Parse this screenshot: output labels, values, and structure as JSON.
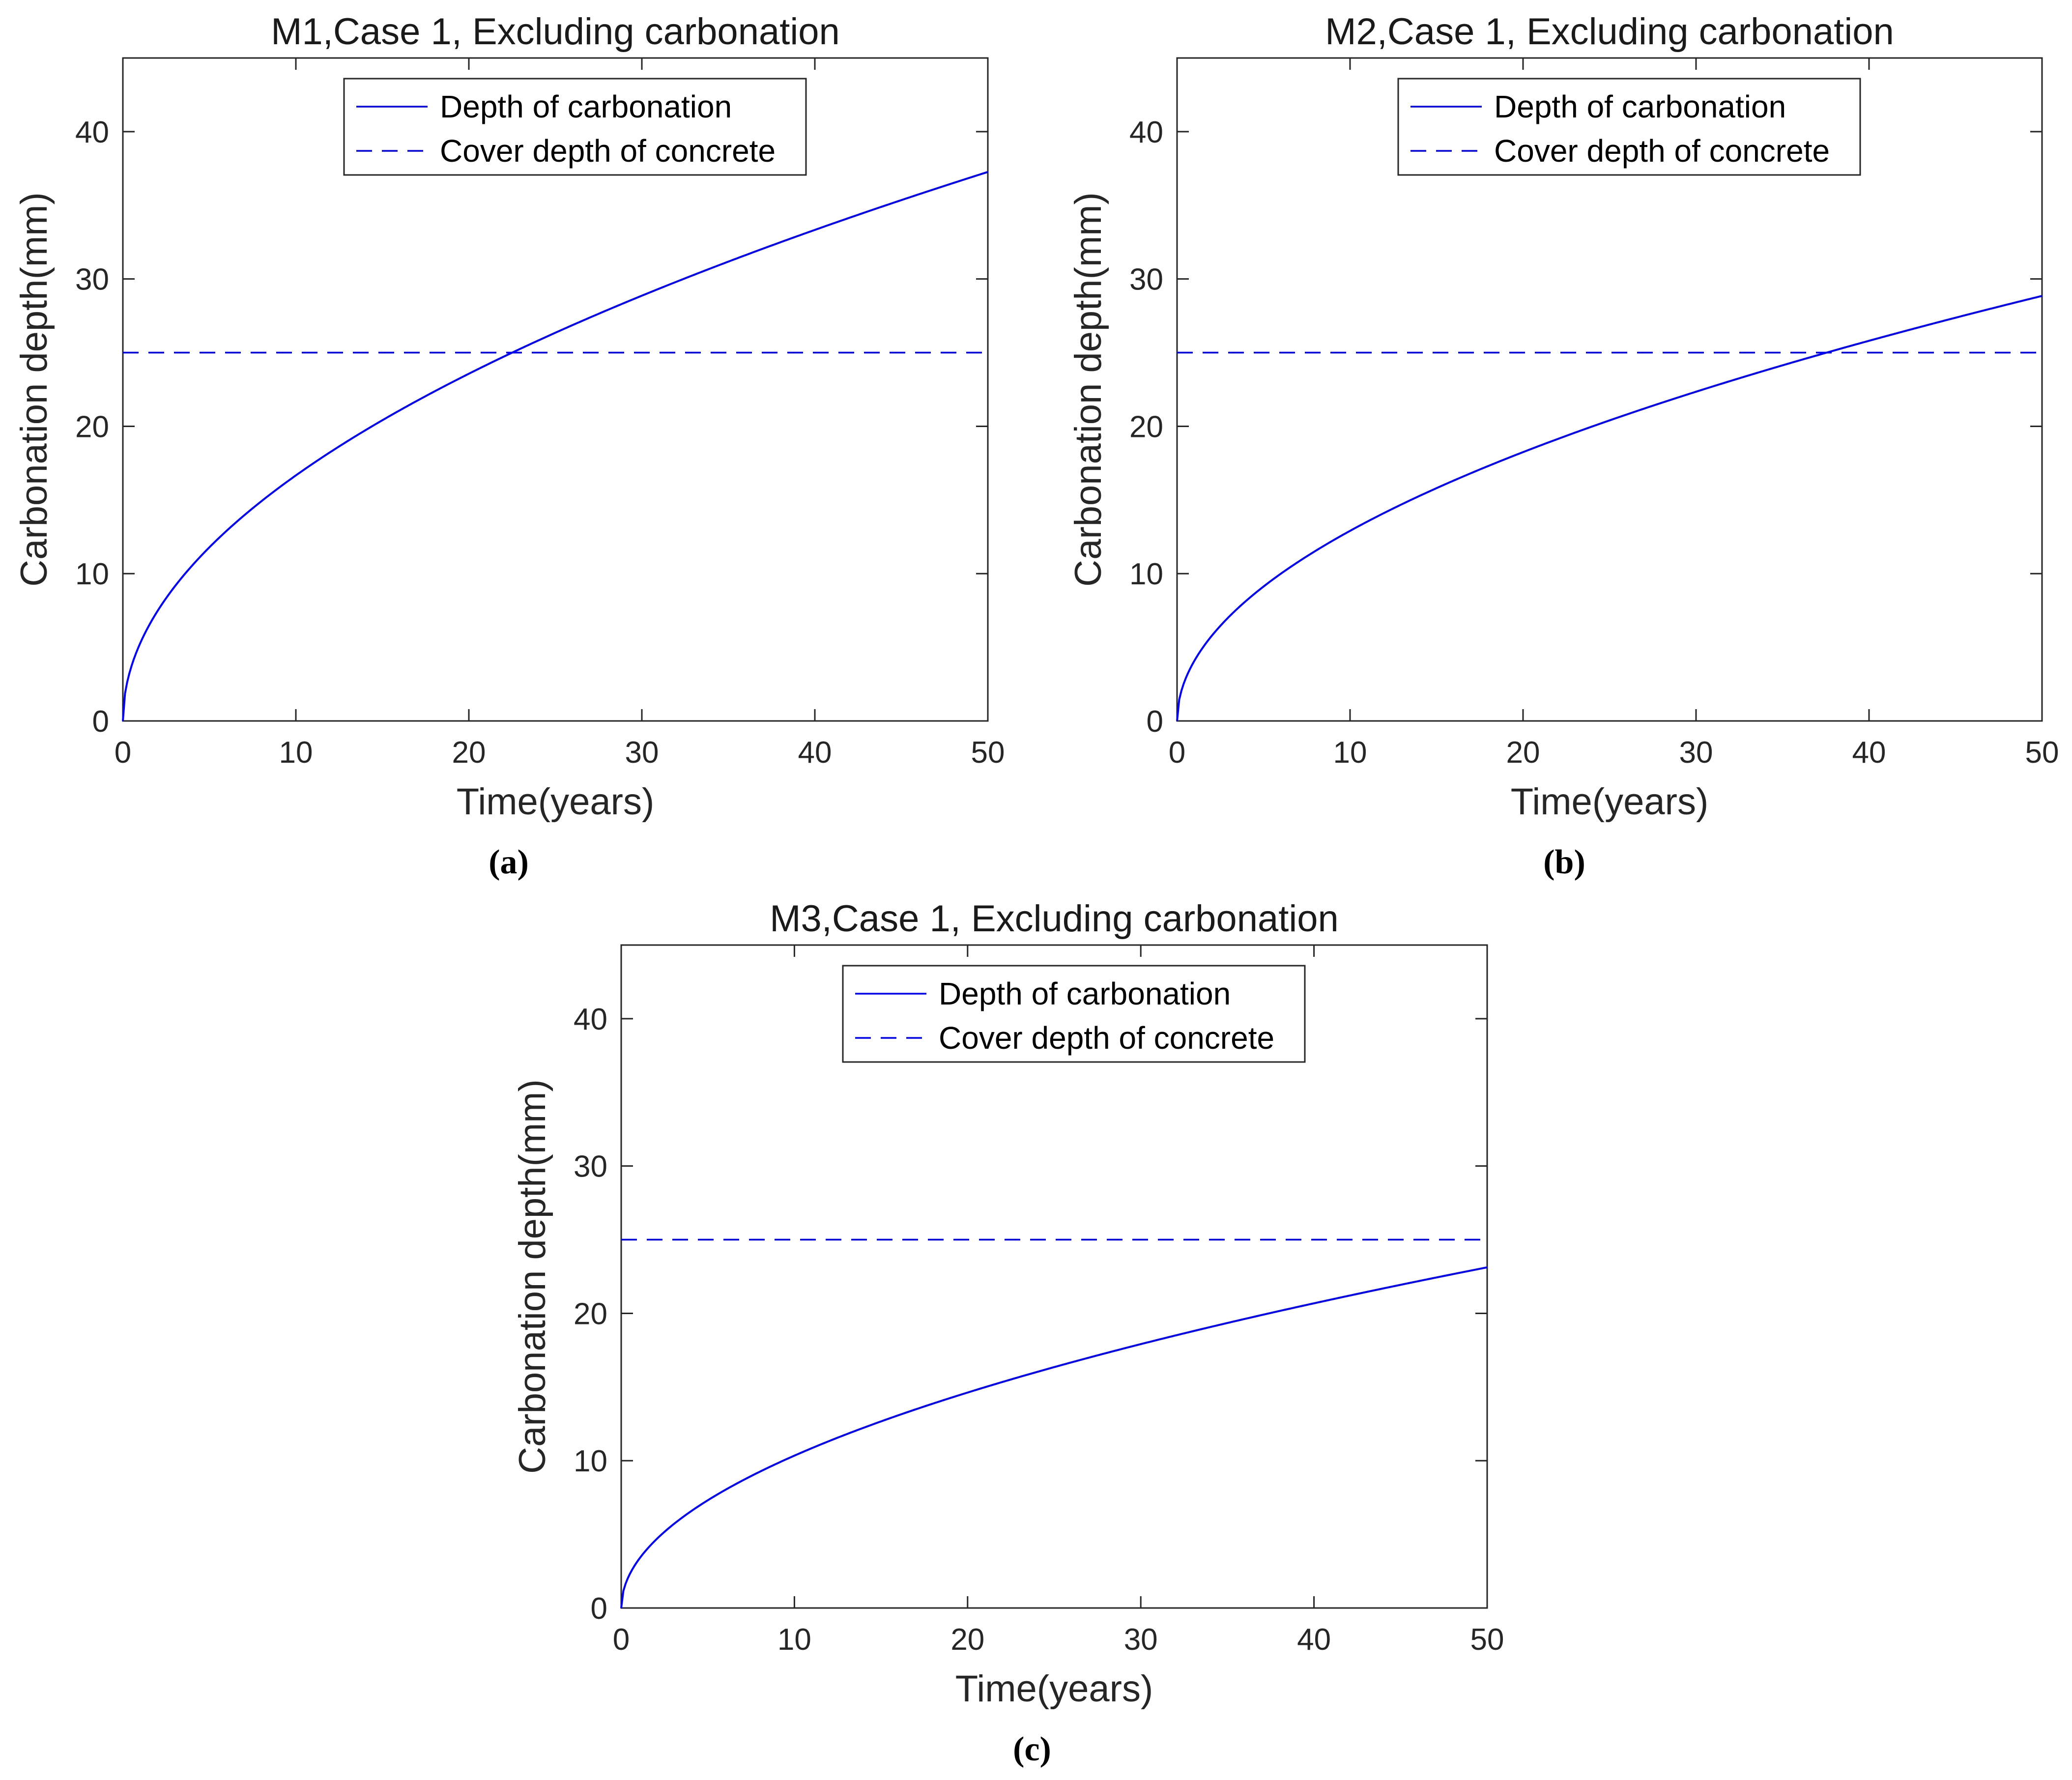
{
  "chart_data": [
    {
      "type": "line",
      "panel_label": "(a)",
      "title": "M1,Case 1, Excluding carbonation",
      "xlabel": "Time(years)",
      "ylabel": "Carbonation depth(mm)",
      "xlim": [
        0,
        50
      ],
      "ylim": [
        0,
        45
      ],
      "xticks": [
        0,
        10,
        20,
        30,
        40,
        50
      ],
      "yticks": [
        0,
        10,
        20,
        30,
        40
      ],
      "grid": false,
      "legend_position": "top-center",
      "series": [
        {
          "name": "Depth of carbonation",
          "style": "solid",
          "color": "#0000ff",
          "function": "sqrt",
          "coefficient": 5.27,
          "value_at_50": 37.3
        },
        {
          "name": "Cover depth of concrete",
          "style": "dashed",
          "color": "#0000ff",
          "constant": 25
        }
      ]
    },
    {
      "type": "line",
      "panel_label": "(b)",
      "title": "M2,Case 1, Excluding carbonation",
      "xlabel": "Time(years)",
      "ylabel": "Carbonation depth(mm)",
      "xlim": [
        0,
        50
      ],
      "ylim": [
        0,
        45
      ],
      "xticks": [
        0,
        10,
        20,
        30,
        40,
        50
      ],
      "yticks": [
        0,
        10,
        20,
        30,
        40
      ],
      "grid": false,
      "legend_position": "top-center",
      "series": [
        {
          "name": "Depth of carbonation",
          "style": "solid",
          "color": "#0000ff",
          "function": "sqrt",
          "coefficient": 4.08,
          "value_at_50": 28.8
        },
        {
          "name": "Cover depth of concrete",
          "style": "dashed",
          "color": "#0000ff",
          "constant": 25
        }
      ]
    },
    {
      "type": "line",
      "panel_label": "(c)",
      "title": "M3,Case 1, Excluding carbonation",
      "xlabel": "Time(years)",
      "ylabel": "Carbonation depth(mm)",
      "xlim": [
        0,
        50
      ],
      "ylim": [
        0,
        45
      ],
      "xticks": [
        0,
        10,
        20,
        30,
        40,
        50
      ],
      "yticks": [
        0,
        10,
        20,
        30,
        40
      ],
      "grid": false,
      "legend_position": "top-center",
      "series": [
        {
          "name": "Depth of carbonation",
          "style": "solid",
          "color": "#0000ff",
          "function": "sqrt",
          "coefficient": 3.27,
          "value_at_50": 23.1
        },
        {
          "name": "Cover depth of concrete",
          "style": "dashed",
          "color": "#0000ff",
          "constant": 25
        }
      ]
    }
  ]
}
